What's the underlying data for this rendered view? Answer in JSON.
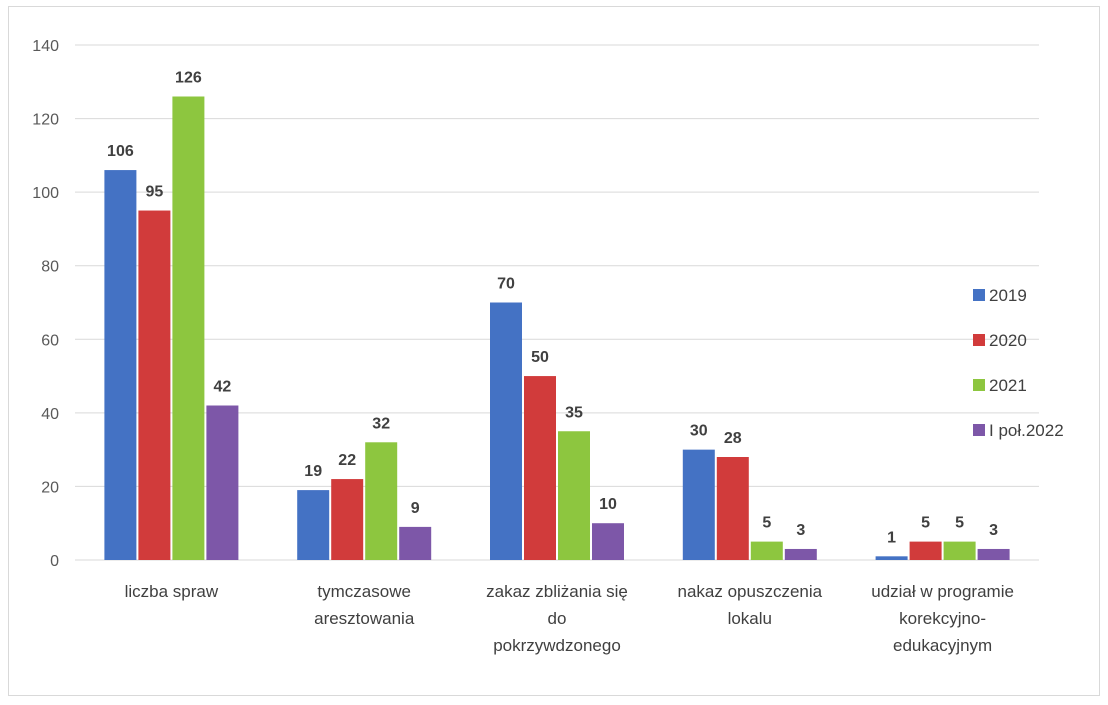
{
  "chart_data": {
    "type": "bar",
    "title": "",
    "xlabel": "",
    "ylabel": "",
    "ylim": [
      0,
      140
    ],
    "yticks": [
      0,
      20,
      40,
      60,
      80,
      100,
      120,
      140
    ],
    "grid": true,
    "legend_position": "right",
    "categories": [
      [
        "liczba spraw"
      ],
      [
        "tymczasowe",
        "aresztowania"
      ],
      [
        "zakaz zbliżania się",
        "do",
        "pokrzywdzonego"
      ],
      [
        "nakaz opuszczenia",
        "lokalu"
      ],
      [
        "udział w programie",
        "korekcyjno-",
        "edukacyjnym"
      ]
    ],
    "series": [
      {
        "name": "2019",
        "color": "#4472c4",
        "values": [
          106,
          19,
          70,
          30,
          1
        ]
      },
      {
        "name": "2020",
        "color": "#d13b3b",
        "values": [
          95,
          22,
          50,
          28,
          5
        ]
      },
      {
        "name": "2021",
        "color": "#8dc63f",
        "values": [
          126,
          32,
          35,
          5,
          5
        ]
      },
      {
        "name": "I poł.2022",
        "color": "#7d57a8",
        "values": [
          42,
          9,
          10,
          3,
          3
        ]
      }
    ]
  }
}
